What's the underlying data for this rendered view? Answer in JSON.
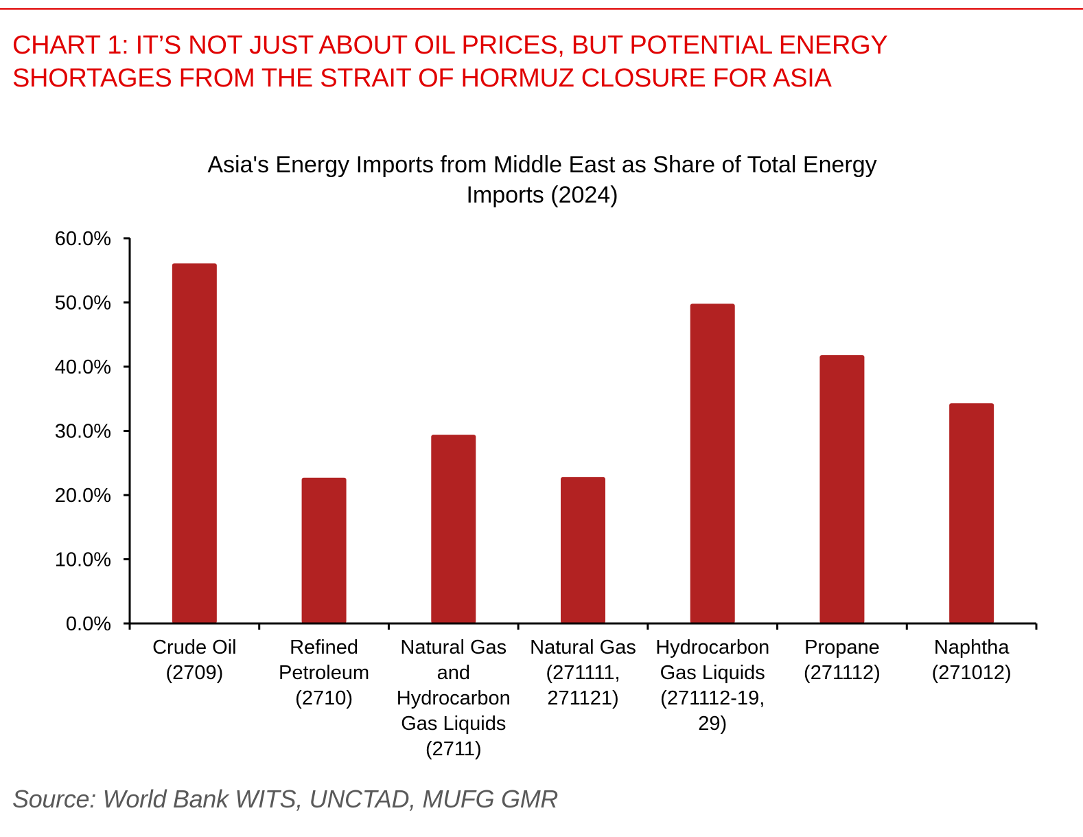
{
  "header": {
    "headline_line1": "CHART 1: IT’S NOT JUST ABOUT OIL PRICES, BUT POTENTIAL ENERGY",
    "headline_line2": "SHORTAGES FROM THE STRAIT OF HORMUZ CLOSURE FOR ASIA",
    "accent_color": "#e00000"
  },
  "chart_data": {
    "type": "bar",
    "title": "Asia's Energy Imports from Middle East as Share of Total Energy Imports (2024)",
    "title_lines": [
      "Asia's Energy Imports from Middle East as Share of Total Energy",
      "Imports (2024)"
    ],
    "xlabel": "",
    "ylabel": "",
    "ylim": [
      0,
      60
    ],
    "yticks": [
      0,
      10,
      20,
      30,
      40,
      50,
      60
    ],
    "ytick_labels": [
      "0.0%",
      "10.0%",
      "20.0%",
      "30.0%",
      "40.0%",
      "50.0%",
      "60.0%"
    ],
    "grid": false,
    "legend": "none",
    "bar_color": "#b22222",
    "categories": [
      "Crude Oil (2709)",
      "Refined Petroleum (2710)",
      "Natural Gas and Hydrocarbon Gas Liquids (2711)",
      "Natural Gas (271111, 271121)",
      "Hydrocarbon Gas Liquids (271112-19, 29)",
      "Propane (271112)",
      "Naphtha (271012)"
    ],
    "category_label_lines": [
      [
        "Crude Oil",
        "(2709)"
      ],
      [
        "Refined",
        "Petroleum",
        "(2710)"
      ],
      [
        "Natural Gas",
        "and",
        "Hydrocarbon",
        "Gas Liquids",
        "(2711)"
      ],
      [
        "Natural Gas",
        "(271111,",
        "271121)"
      ],
      [
        "Hydrocarbon",
        "Gas Liquids",
        "(271112-19,",
        "29)"
      ],
      [
        "Propane",
        "(271112)"
      ],
      [
        "Naphtha",
        "(271012)"
      ]
    ],
    "values": [
      56.1,
      22.7,
      29.4,
      22.8,
      49.8,
      41.8,
      34.3
    ],
    "unit": "%"
  },
  "footer": {
    "source": "Source: World Bank WITS, UNCTAD, MUFG GMR"
  }
}
